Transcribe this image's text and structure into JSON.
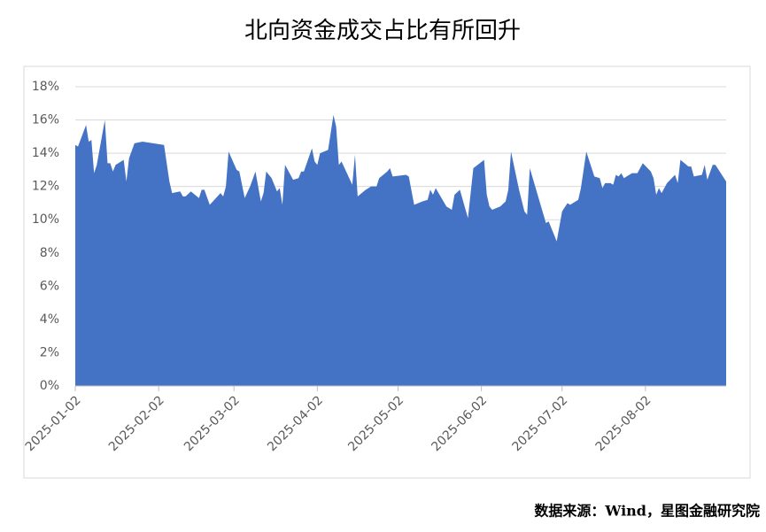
{
  "chart_data": {
    "type": "area",
    "title": "北向资金成交占比有所回升",
    "source": "数据来源：Wind，星图金融研究院",
    "color": "#4472c4",
    "grid": true,
    "xlim": [
      "2025-01-02",
      "2025-09-01"
    ],
    "xticks": [
      "2025-01-02",
      "2025-02-02",
      "2025-03-02",
      "2025-04-02",
      "2025-05-02",
      "2025-06-02",
      "2025-07-02",
      "2025-08-02"
    ],
    "ylim": [
      0,
      18
    ],
    "yticks": [
      {
        "value": 0,
        "label": "0%"
      },
      {
        "value": 2,
        "label": "2%"
      },
      {
        "value": 4,
        "label": "4%"
      },
      {
        "value": 6,
        "label": "6%"
      },
      {
        "value": 8,
        "label": "8%"
      },
      {
        "value": 10,
        "label": "10%"
      },
      {
        "value": 12,
        "label": "12%"
      },
      {
        "value": 14,
        "label": "14%"
      },
      {
        "value": 16,
        "label": "16%"
      },
      {
        "value": 18,
        "label": "18%"
      }
    ],
    "x": [
      "2025-01-02",
      "2025-01-03",
      "2025-01-06",
      "2025-01-07",
      "2025-01-08",
      "2025-01-09",
      "2025-01-10",
      "2025-01-13",
      "2025-01-14",
      "2025-01-15",
      "2025-01-16",
      "2025-01-17",
      "2025-01-20",
      "2025-01-21",
      "2025-01-22",
      "2025-01-24",
      "2025-01-27",
      "2025-02-04",
      "2025-02-06",
      "2025-02-07",
      "2025-02-10",
      "2025-02-11",
      "2025-02-12",
      "2025-02-14",
      "2025-02-17",
      "2025-02-18",
      "2025-02-19",
      "2025-02-21",
      "2025-02-25",
      "2025-02-26",
      "2025-02-27",
      "2025-02-28",
      "2025-03-03",
      "2025-03-04",
      "2025-03-06",
      "2025-03-08",
      "2025-03-10",
      "2025-03-12",
      "2025-03-13",
      "2025-03-14",
      "2025-03-16",
      "2025-03-18",
      "2025-03-19",
      "2025-03-20",
      "2025-03-21",
      "2025-03-24",
      "2025-03-26",
      "2025-03-27",
      "2025-03-28",
      "2025-03-31",
      "2025-04-01",
      "2025-04-02",
      "2025-04-03",
      "2025-04-06",
      "2025-04-08",
      "2025-04-09",
      "2025-04-10",
      "2025-04-11",
      "2025-04-15",
      "2025-04-16",
      "2025-04-17",
      "2025-04-20",
      "2025-04-22",
      "2025-04-24",
      "2025-04-25",
      "2025-04-28",
      "2025-04-29",
      "2025-04-30",
      "2025-05-05",
      "2025-05-06",
      "2025-05-08",
      "2025-05-11",
      "2025-05-13",
      "2025-05-14",
      "2025-05-15",
      "2025-05-16",
      "2025-05-20",
      "2025-05-22",
      "2025-05-23",
      "2025-05-25",
      "2025-05-28",
      "2025-05-30",
      "2025-06-03",
      "2025-06-04",
      "2025-06-05",
      "2025-06-06",
      "2025-06-09",
      "2025-06-11",
      "2025-06-12",
      "2025-06-13",
      "2025-06-16",
      "2025-06-18",
      "2025-06-19",
      "2025-06-20",
      "2025-06-22",
      "2025-06-24",
      "2025-06-26",
      "2025-06-27",
      "2025-06-30",
      "2025-07-02",
      "2025-07-04",
      "2025-07-05",
      "2025-07-08",
      "2025-07-09",
      "2025-07-11",
      "2025-07-14",
      "2025-07-16",
      "2025-07-17",
      "2025-07-18",
      "2025-07-20",
      "2025-07-21",
      "2025-07-22",
      "2025-07-23",
      "2025-07-24",
      "2025-07-25",
      "2025-07-28",
      "2025-07-30",
      "2025-08-01",
      "2025-08-04",
      "2025-08-05",
      "2025-08-06",
      "2025-08-07",
      "2025-08-08",
      "2025-08-10",
      "2025-08-13",
      "2025-08-14",
      "2025-08-15",
      "2025-08-18",
      "2025-08-19",
      "2025-08-20",
      "2025-08-23",
      "2025-08-24",
      "2025-08-25",
      "2025-08-27",
      "2025-08-28",
      "2025-09-01"
    ],
    "values": [
      14.5,
      14.4,
      15.7,
      14.7,
      14.8,
      12.8,
      13.3,
      16.0,
      13.4,
      13.4,
      12.9,
      13.3,
      13.6,
      12.3,
      13.7,
      14.6,
      14.7,
      14.5,
      12.3,
      11.6,
      11.7,
      11.4,
      11.4,
      11.7,
      11.3,
      11.8,
      11.8,
      10.9,
      11.6,
      11.4,
      12.0,
      14.1,
      13.0,
      12.9,
      11.3,
      12.0,
      12.9,
      11.1,
      11.6,
      12.9,
      12.5,
      11.7,
      11.9,
      10.9,
      13.3,
      12.4,
      12.5,
      12.9,
      12.9,
      14.3,
      13.5,
      13.3,
      14.0,
      14.2,
      16.3,
      15.6,
      13.3,
      13.5,
      12.1,
      13.9,
      11.4,
      11.8,
      12.0,
      12.0,
      12.5,
      12.9,
      13.1,
      12.6,
      12.7,
      12.6,
      10.9,
      11.1,
      11.2,
      11.8,
      11.5,
      11.9,
      10.8,
      10.6,
      11.5,
      11.8,
      10.1,
      13.1,
      13.6,
      11.5,
      10.8,
      10.6,
      10.8,
      11.1,
      11.8,
      14.1,
      11.8,
      10.5,
      10.3,
      13.1,
      12.0,
      10.9,
      9.8,
      9.9,
      8.7,
      10.5,
      11.0,
      10.9,
      11.2,
      11.9,
      14.1,
      12.6,
      12.5,
      11.9,
      12.2,
      12.2,
      12.1,
      12.7,
      12.6,
      12.8,
      12.5,
      12.8,
      12.8,
      13.4,
      12.9,
      12.5,
      11.5,
      11.9,
      11.6,
      12.2,
      12.7,
      12.2,
      13.6,
      13.2,
      13.2,
      12.6,
      12.7,
      13.3,
      12.4,
      13.3,
      13.3,
      12.3
    ]
  }
}
